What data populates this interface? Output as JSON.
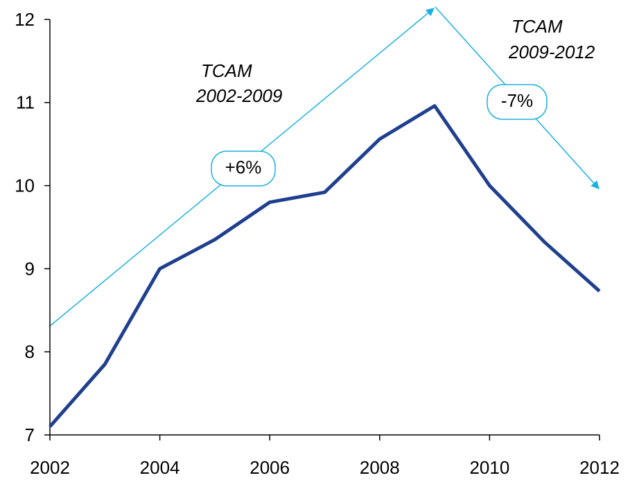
{
  "chart_data": {
    "type": "line",
    "x": [
      2002,
      2003,
      2004,
      2005,
      2006,
      2007,
      2008,
      2009,
      2010,
      2011,
      2012
    ],
    "series": [
      {
        "color": "#1f3f8f",
        "values": [
          7.1,
          7.85,
          9.0,
          9.35,
          9.8,
          9.92,
          10.56,
          10.96,
          10.0,
          9.32,
          8.73
        ]
      }
    ],
    "xlim": [
      2002,
      2012
    ],
    "xticks": [
      2002,
      2004,
      2006,
      2008,
      2010,
      2012
    ],
    "ylim": [
      7,
      12
    ],
    "yticks": [
      7,
      8,
      9,
      10,
      11,
      12
    ],
    "grid": false,
    "annotations": [
      {
        "lines": [
          "TCAM",
          "2002-2009"
        ],
        "label": "+6%"
      },
      {
        "lines": [
          "TCAM",
          "2009-2012"
        ],
        "label": "-7%"
      }
    ]
  }
}
